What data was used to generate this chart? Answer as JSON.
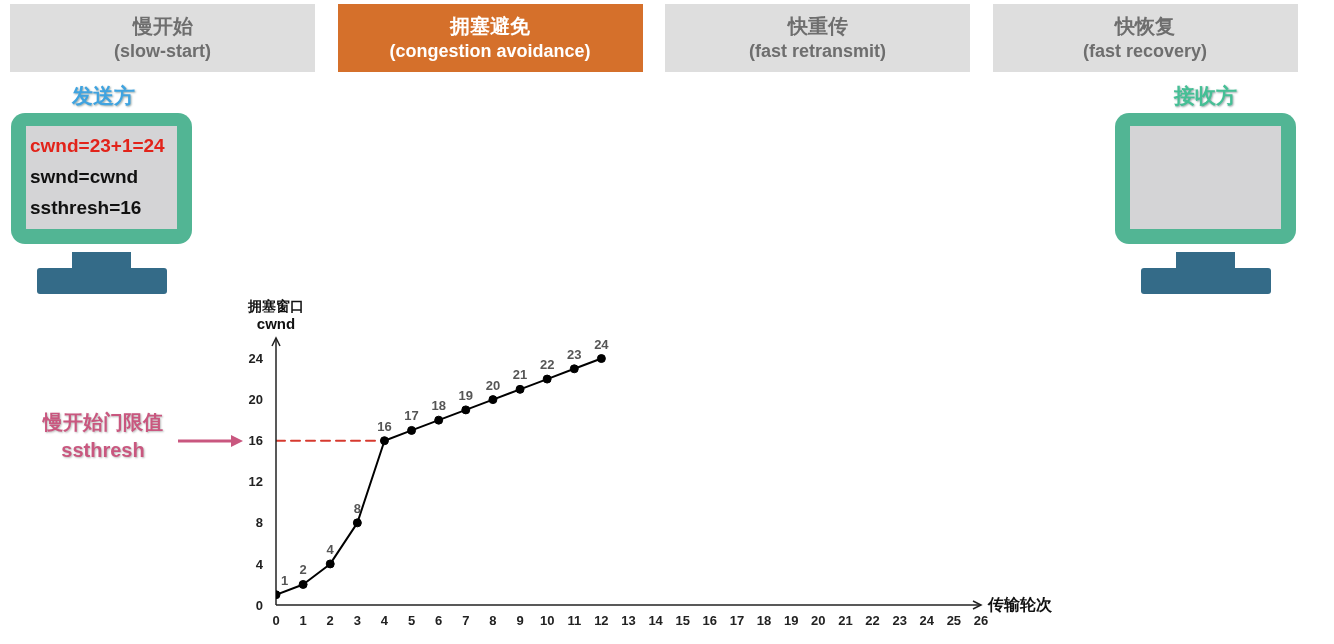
{
  "chart_data": {
    "type": "line",
    "annotations": [
      "慢开始\n(slow-start)",
      "拥塞避免\n(congestion avoidance)",
      "快重传\n(fast retransmit)",
      "快恢复\n(fast recovery)",
      "发送方",
      "cwnd=23+1=24",
      "swnd=cwnd",
      "ssthresh=16",
      "接收方",
      "慢开始门限值\nssthresh"
    ],
    "xlabel": "传输轮次",
    "ylabel": "拥塞窗口\ncwnd",
    "marker": "circle",
    "series": [
      {
        "color": "#d63a2f",
        "x": [
          0,
          4
        ],
        "values": [
          16,
          16
        ],
        "line_style": "dashed",
        "marker": "none"
      },
      {
        "color": "#000000",
        "x": [
          0,
          1,
          2,
          3,
          4,
          5,
          6,
          7,
          8,
          9,
          10,
          11,
          12
        ],
        "values": [
          1,
          2,
          4,
          8,
          16,
          17,
          18,
          19,
          20,
          21,
          22,
          23,
          24
        ],
        "value_labels": [
          "1",
          "2",
          "4",
          "8",
          "16",
          "17",
          "18",
          "19",
          "20",
          "21",
          "22",
          "23",
          "24"
        ]
      }
    ],
    "xlim": [
      0,
      26
    ],
    "ylim": [
      0,
      26
    ],
    "xticks": [
      0,
      1,
      2,
      3,
      4,
      5,
      6,
      7,
      8,
      9,
      10,
      11,
      12,
      13,
      14,
      15,
      16,
      17,
      18,
      19,
      20,
      21,
      22,
      23,
      24,
      25,
      26
    ],
    "yticks": [
      0,
      4,
      8,
      12,
      16,
      20,
      24
    ]
  }
}
